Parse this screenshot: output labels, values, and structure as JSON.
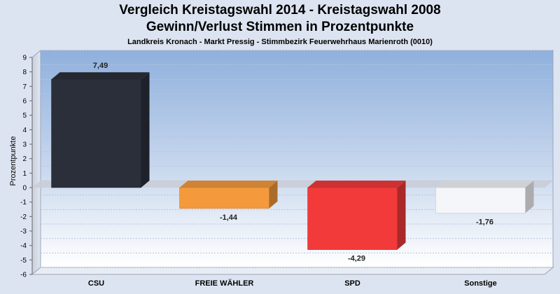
{
  "title": "Vergleich Kreistagswahl 2014 - Kreistagswahl 2008",
  "subtitle_line2": "Gewinn/Verlust Stimmen in Prozentpunkte",
  "subtitle": "Landkreis Kronach - Markt Pressig - Stimmbezirk Feuerwehrhaus Marienroth (0010)",
  "chart_data": {
    "type": "bar",
    "categories": [
      "CSU",
      "FREIE WÄHLER",
      "SPD",
      "Sonstige"
    ],
    "values": [
      7.49,
      -1.44,
      -4.29,
      -1.76
    ],
    "data_labels": [
      "7,49",
      "-1,44",
      "-4,29",
      "-1,76"
    ],
    "colors": [
      "#2b2f3a",
      "#f49a3c",
      "#f23a3a",
      "#f5f6fa"
    ],
    "xlabel": "",
    "ylabel": "Prozentpunkte",
    "ylim": [
      -6,
      9
    ],
    "yticks": [
      9,
      8,
      7,
      6,
      5,
      4,
      3,
      2,
      1,
      0,
      -1,
      -2,
      -3,
      -4,
      -5,
      -6
    ],
    "grid": true
  }
}
